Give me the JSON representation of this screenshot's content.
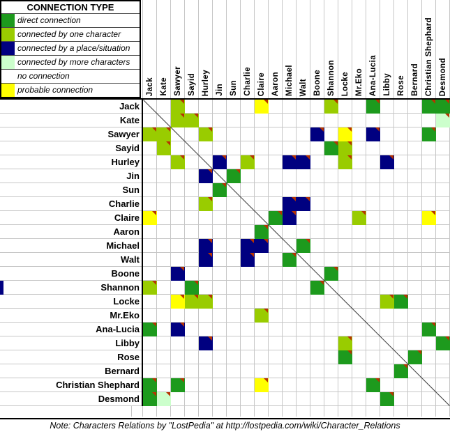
{
  "legend_box": {
    "title": "CONNECTION TYPE"
  },
  "colors": {
    "direct": "#1d9a1d",
    "one": "#99cc00",
    "place": "#000080",
    "more": "#ccffcc",
    "none": "#ffffff",
    "probable": "#ffff00",
    "comment_marker": "#b63301",
    "gridline": "#c6c6c6",
    "diagonal": "#3c3c3c"
  },
  "chart_data": {
    "type": "heatmap",
    "title": "CONNECTION TYPE",
    "source_note": "Note: Characters Relations by \"LostPedia\" at http://lostpedia.com/wiki/Character_Relations",
    "characters": [
      "Jack",
      "Kate",
      "Sawyer",
      "Sayid",
      "Hurley",
      "Jin",
      "Sun",
      "Charlie",
      "Claire",
      "Aaron",
      "Michael",
      "Walt",
      "Boone",
      "Shannon",
      "Locke",
      "Mr.Eko",
      "Ana-Lucia",
      "Libby",
      "Rose",
      "Bernard",
      "Christian Shephard",
      "Desmond"
    ],
    "legend": [
      {
        "key": "direct",
        "label": "direct connection",
        "color": "#1d9a1d"
      },
      {
        "key": "one",
        "label": "connected by one character",
        "color": "#99cc00"
      },
      {
        "key": "place",
        "label": "connected by a place/situation",
        "color": "#000080"
      },
      {
        "key": "more",
        "label": "connected by more characters",
        "color": "#ccffcc"
      },
      {
        "key": "none",
        "label": "no connection",
        "color": "#ffffff"
      },
      {
        "key": "probable",
        "label": "probable connection",
        "color": "#ffff00"
      }
    ],
    "default_type": "none",
    "symmetric": true,
    "comment_markers_on_colored_cells": true,
    "pairs": [
      {
        "a": "Jack",
        "b": "Sawyer",
        "type": "one"
      },
      {
        "a": "Jack",
        "b": "Claire",
        "type": "probable"
      },
      {
        "a": "Jack",
        "b": "Shannon",
        "type": "one"
      },
      {
        "a": "Jack",
        "b": "Ana-Lucia",
        "type": "direct"
      },
      {
        "a": "Jack",
        "b": "Christian Shephard",
        "type": "direct"
      },
      {
        "a": "Jack",
        "b": "Desmond",
        "type": "direct"
      },
      {
        "a": "Kate",
        "b": "Sawyer",
        "type": "one"
      },
      {
        "a": "Kate",
        "b": "Sayid",
        "type": "one"
      },
      {
        "a": "Kate",
        "b": "Desmond",
        "type": "more"
      },
      {
        "a": "Sawyer",
        "b": "Hurley",
        "type": "one"
      },
      {
        "a": "Sawyer",
        "b": "Boone",
        "type": "place"
      },
      {
        "a": "Sawyer",
        "b": "Locke",
        "type": "probable"
      },
      {
        "a": "Sawyer",
        "b": "Ana-Lucia",
        "type": "place"
      },
      {
        "a": "Sawyer",
        "b": "Christian Shephard",
        "type": "direct"
      },
      {
        "a": "Sayid",
        "b": "Shannon",
        "type": "direct"
      },
      {
        "a": "Sayid",
        "b": "Locke",
        "type": "one"
      },
      {
        "a": "Hurley",
        "b": "Jin",
        "type": "place"
      },
      {
        "a": "Hurley",
        "b": "Charlie",
        "type": "one"
      },
      {
        "a": "Hurley",
        "b": "Michael",
        "type": "place"
      },
      {
        "a": "Hurley",
        "b": "Walt",
        "type": "place"
      },
      {
        "a": "Hurley",
        "b": "Locke",
        "type": "one"
      },
      {
        "a": "Hurley",
        "b": "Libby",
        "type": "place"
      },
      {
        "a": "Jin",
        "b": "Sun",
        "type": "direct"
      },
      {
        "a": "Charlie",
        "b": "Michael",
        "type": "place"
      },
      {
        "a": "Charlie",
        "b": "Walt",
        "type": "place"
      },
      {
        "a": "Claire",
        "b": "Aaron",
        "type": "direct"
      },
      {
        "a": "Claire",
        "b": "Michael",
        "type": "place"
      },
      {
        "a": "Claire",
        "b": "Mr.Eko",
        "type": "one"
      },
      {
        "a": "Claire",
        "b": "Christian Shephard",
        "type": "probable"
      },
      {
        "a": "Michael",
        "b": "Walt",
        "type": "direct"
      },
      {
        "a": "Boone",
        "b": "Shannon",
        "type": "direct"
      },
      {
        "a": "Locke",
        "b": "Libby",
        "type": "one"
      },
      {
        "a": "Locke",
        "b": "Rose",
        "type": "direct"
      },
      {
        "a": "Ana-Lucia",
        "b": "Christian Shephard",
        "type": "direct"
      },
      {
        "a": "Libby",
        "b": "Desmond",
        "type": "direct"
      },
      {
        "a": "Rose",
        "b": "Bernard",
        "type": "direct"
      }
    ]
  }
}
